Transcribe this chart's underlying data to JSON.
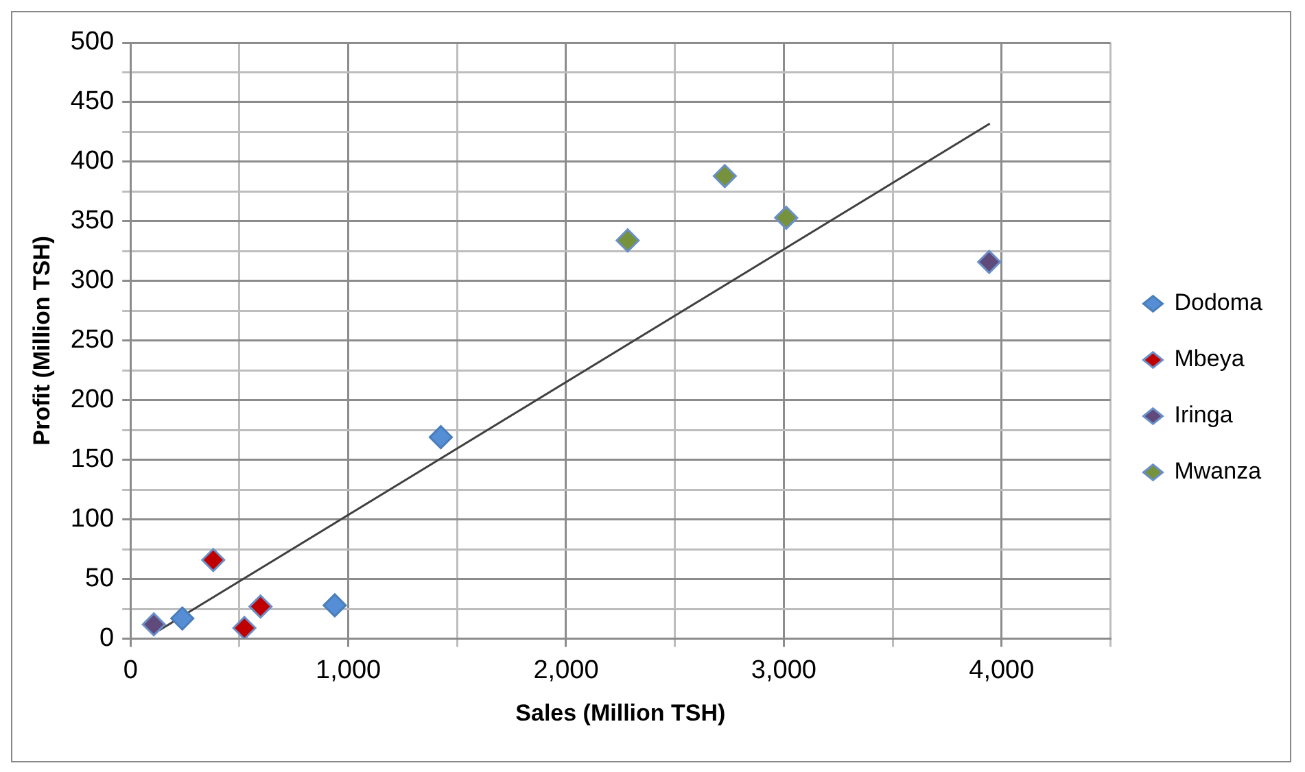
{
  "chart_data": {
    "type": "scatter",
    "xlabel": "Sales (Million TSH)",
    "ylabel": "Profit (Million TSH)",
    "series": [
      {
        "name": "Dodoma",
        "color": "#558ed5",
        "x": [
          238,
          938,
          1425
        ],
        "values": [
          17,
          28,
          169
        ]
      },
      {
        "name": "Mbeya",
        "color": "#c00000",
        "x": [
          380,
          523,
          597
        ],
        "values": [
          66,
          9,
          27
        ]
      },
      {
        "name": "Iringa",
        "color": "#604a7b",
        "x": [
          107,
          3943
        ],
        "values": [
          12,
          316
        ]
      },
      {
        "name": "Mwanza",
        "color": "#76923c",
        "x": [
          2283,
          2729,
          3011
        ],
        "values": [
          334,
          388,
          353
        ]
      },
      {
        "type": "line",
        "color": "#404040",
        "x": [
          131,
          3946
        ],
        "values": [
          7,
          432
        ],
        "marker": "none"
      }
    ],
    "xlim": [
      0,
      4500
    ],
    "xticks": [
      0,
      {
        "value": 500,
        "label": null
      },
      {
        "value": 1000,
        "label": "1,000"
      },
      {
        "value": 1500,
        "label": null
      },
      {
        "value": 2000,
        "label": "2,000"
      },
      {
        "value": 2500,
        "label": null
      },
      {
        "value": 3000,
        "label": "3,000"
      },
      {
        "value": 3500,
        "label": null
      },
      {
        "value": 4000,
        "label": "4,000"
      },
      {
        "value": 4500,
        "label": null
      }
    ],
    "ylim": [
      0,
      500
    ],
    "yticks": [
      0,
      {
        "value": 25,
        "label": null
      },
      50,
      {
        "value": 75,
        "label": null
      },
      100,
      {
        "value": 125,
        "label": null
      },
      150,
      {
        "value": 175,
        "label": null
      },
      200,
      {
        "value": 225,
        "label": null
      },
      250,
      {
        "value": 275,
        "label": null
      },
      300,
      {
        "value": 325,
        "label": null
      },
      350,
      {
        "value": 375,
        "label": null
      },
      400,
      {
        "value": 425,
        "label": null
      },
      450,
      {
        "value": 475,
        "label": null
      },
      500
    ],
    "grid": true,
    "legend": "right",
    "marker": "diamond"
  }
}
